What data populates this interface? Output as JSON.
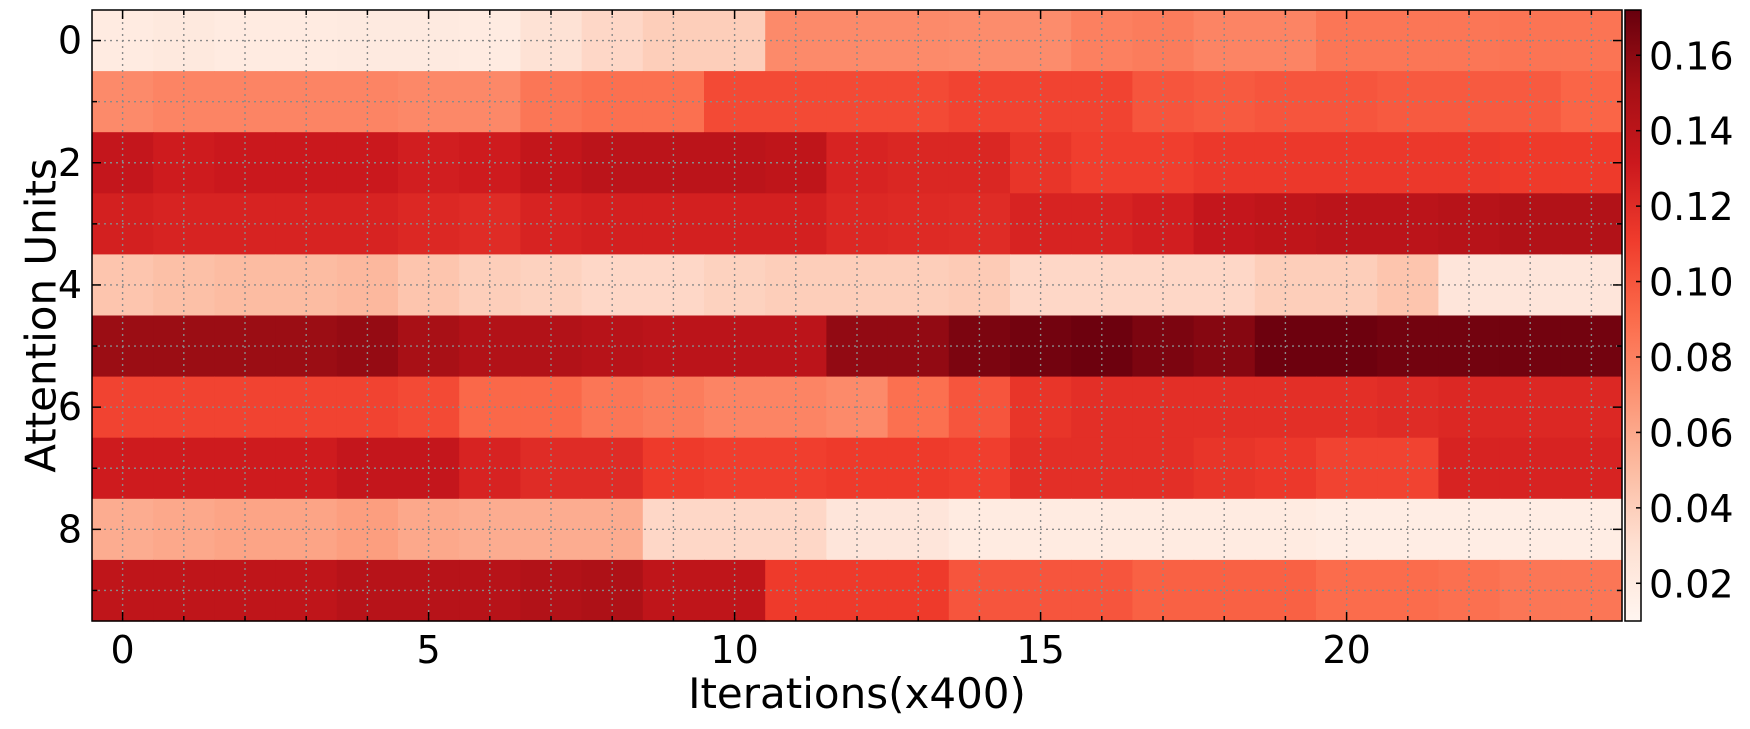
{
  "chart_data": {
    "type": "heatmap",
    "title": "",
    "xlabel": "Iterations(x400)",
    "ylabel": "Attention Units",
    "x_ticks": [
      "0",
      "5",
      "10",
      "15",
      "20"
    ],
    "x_tick_values": [
      0,
      5,
      10,
      15,
      20
    ],
    "y_ticks": [
      "0",
      "2",
      "4",
      "6",
      "8"
    ],
    "y_tick_values": [
      0,
      2,
      4,
      6,
      8
    ],
    "n_cols": 25,
    "n_rows": 10,
    "grid": true,
    "colormap": "Reds",
    "colorbar": {
      "min": 0.01,
      "max": 0.172,
      "ticks": [
        "0.02",
        "0.04",
        "0.06",
        "0.08",
        "0.10",
        "0.12",
        "0.14",
        "0.16"
      ],
      "tick_values": [
        0.02,
        0.04,
        0.06,
        0.08,
        0.1,
        0.12,
        0.14,
        0.16
      ],
      "placement": "right"
    },
    "values": [
      [
        0.02,
        0.022,
        0.02,
        0.02,
        0.021,
        0.021,
        0.02,
        0.028,
        0.035,
        0.04,
        0.04,
        0.075,
        0.075,
        0.075,
        0.074,
        0.074,
        0.08,
        0.082,
        0.078,
        0.078,
        0.085,
        0.085,
        0.085,
        0.086,
        0.086
      ],
      [
        0.075,
        0.078,
        0.078,
        0.078,
        0.078,
        0.076,
        0.076,
        0.085,
        0.088,
        0.088,
        0.105,
        0.105,
        0.105,
        0.105,
        0.108,
        0.108,
        0.108,
        0.1,
        0.098,
        0.1,
        0.1,
        0.098,
        0.098,
        0.098,
        0.093
      ],
      [
        0.135,
        0.13,
        0.132,
        0.132,
        0.132,
        0.128,
        0.13,
        0.136,
        0.14,
        0.14,
        0.14,
        0.138,
        0.125,
        0.123,
        0.123,
        0.115,
        0.11,
        0.11,
        0.113,
        0.113,
        0.113,
        0.113,
        0.113,
        0.112,
        0.112
      ],
      [
        0.127,
        0.125,
        0.125,
        0.125,
        0.125,
        0.122,
        0.12,
        0.125,
        0.127,
        0.127,
        0.127,
        0.127,
        0.122,
        0.121,
        0.12,
        0.125,
        0.125,
        0.128,
        0.135,
        0.138,
        0.14,
        0.14,
        0.142,
        0.145,
        0.145
      ],
      [
        0.045,
        0.048,
        0.05,
        0.05,
        0.052,
        0.045,
        0.04,
        0.038,
        0.035,
        0.035,
        0.038,
        0.04,
        0.04,
        0.04,
        0.042,
        0.035,
        0.035,
        0.035,
        0.035,
        0.04,
        0.04,
        0.045,
        0.025,
        0.025,
        0.025
      ],
      [
        0.155,
        0.155,
        0.155,
        0.155,
        0.157,
        0.15,
        0.145,
        0.145,
        0.142,
        0.14,
        0.14,
        0.14,
        0.158,
        0.158,
        0.165,
        0.168,
        0.17,
        0.165,
        0.162,
        0.17,
        0.17,
        0.168,
        0.168,
        0.168,
        0.168
      ],
      [
        0.108,
        0.108,
        0.108,
        0.108,
        0.108,
        0.105,
        0.092,
        0.092,
        0.085,
        0.082,
        0.078,
        0.078,
        0.075,
        0.088,
        0.1,
        0.115,
        0.118,
        0.118,
        0.118,
        0.118,
        0.118,
        0.12,
        0.122,
        0.122,
        0.122
      ],
      [
        0.13,
        0.13,
        0.13,
        0.13,
        0.135,
        0.135,
        0.125,
        0.12,
        0.12,
        0.112,
        0.11,
        0.11,
        0.112,
        0.112,
        0.11,
        0.118,
        0.118,
        0.118,
        0.115,
        0.113,
        0.108,
        0.108,
        0.125,
        0.125,
        0.125
      ],
      [
        0.058,
        0.06,
        0.062,
        0.062,
        0.065,
        0.06,
        0.058,
        0.058,
        0.058,
        0.035,
        0.035,
        0.035,
        0.025,
        0.025,
        0.02,
        0.02,
        0.02,
        0.02,
        0.02,
        0.02,
        0.018,
        0.018,
        0.018,
        0.018,
        0.018
      ],
      [
        0.138,
        0.138,
        0.138,
        0.138,
        0.142,
        0.142,
        0.142,
        0.145,
        0.147,
        0.138,
        0.138,
        0.112,
        0.112,
        0.112,
        0.1,
        0.1,
        0.1,
        0.095,
        0.095,
        0.095,
        0.09,
        0.09,
        0.088,
        0.085,
        0.085
      ]
    ]
  }
}
